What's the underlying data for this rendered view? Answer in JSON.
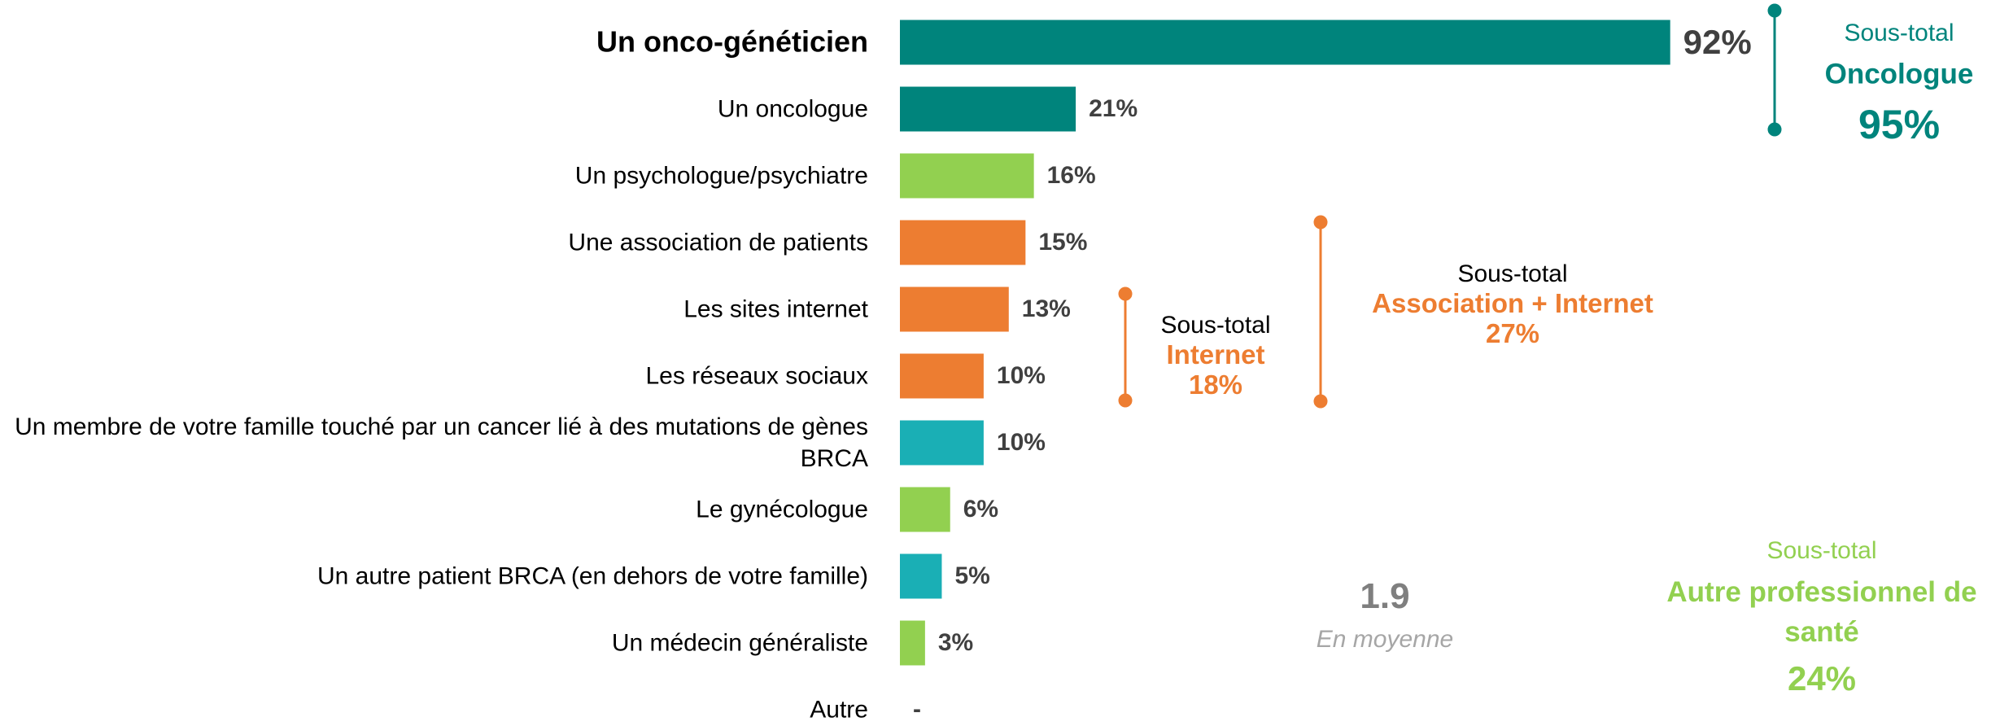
{
  "chart_data": {
    "type": "bar",
    "orientation": "horizontal",
    "highlight": 0,
    "categories": [
      "Un onco-généticien",
      "Un oncologue",
      "Un psychologue/psychiatre",
      "Une association de patients",
      "Les sites internet",
      "Les réseaux sociaux",
      "Un membre de votre famille touché par un cancer lié à des mutations de gènes BRCA",
      "Le gynécologue",
      "Un autre patient BRCA (en dehors de votre famille)",
      "Un médecin généraliste",
      "Autre"
    ],
    "values": [
      92,
      21,
      16,
      15,
      13,
      10,
      10,
      6,
      5,
      3,
      null
    ],
    "value_labels": [
      "92%",
      "21%",
      "16%",
      "15%",
      "13%",
      "10%",
      "10%",
      "6%",
      "5%",
      "3%",
      "-"
    ],
    "colors": [
      "#00847c",
      "#00847c",
      "#92d050",
      "#ed7d31",
      "#ed7d31",
      "#ed7d31",
      "#1aafb5",
      "#92d050",
      "#1aafb5",
      "#92d050",
      "#92d050"
    ],
    "subtotals": [
      {
        "title": "Sous-total",
        "name": "Oncologue",
        "value_label": "95%",
        "color": "#00847c"
      },
      {
        "title": "Sous-total",
        "name": "Internet",
        "value_label": "18%",
        "color": "#ed7d31"
      },
      {
        "title": "Sous-total",
        "name": "Association + Internet",
        "value_label": "27%",
        "color": "#ed7d31"
      },
      {
        "title": "Sous-total",
        "name": "Autre professionnel de santé",
        "value_label": "24%",
        "color": "#92d050"
      }
    ],
    "average": {
      "value": 1.9,
      "label": "En moyenne"
    }
  }
}
